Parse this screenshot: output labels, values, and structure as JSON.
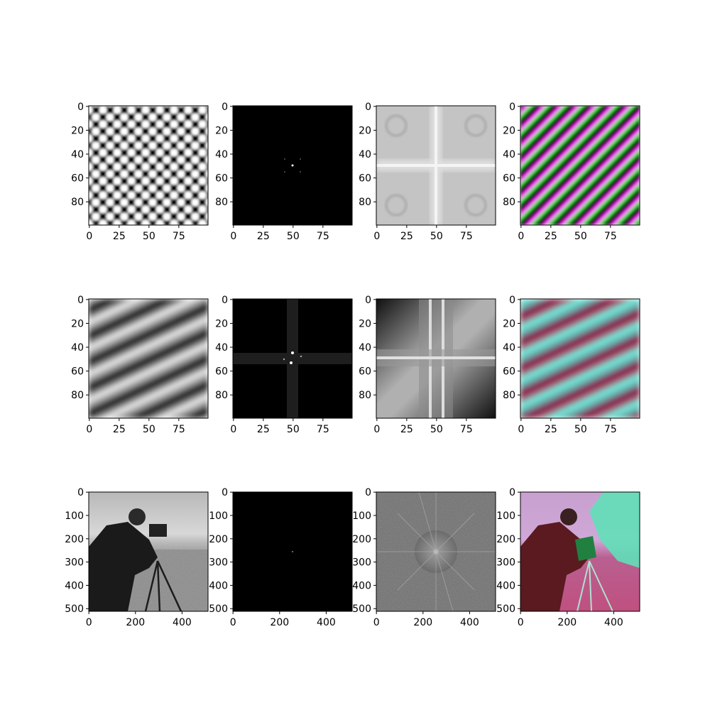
{
  "chart_data": {
    "type": "image_grid",
    "rows": 3,
    "cols": 4,
    "panels": [
      {
        "content": "checkerboard-pattern",
        "xticks": [
          "0",
          "25",
          "50",
          "75"
        ],
        "yticks": [
          "0",
          "20",
          "40",
          "60",
          "80"
        ],
        "xlim": [
          0,
          99
        ],
        "ylim": [
          99,
          0
        ]
      },
      {
        "content": "fft-magnitude-linear",
        "xticks": [
          "0",
          "25",
          "50",
          "75"
        ],
        "yticks": [
          "0",
          "20",
          "40",
          "60",
          "80"
        ],
        "xlim": [
          0,
          99
        ],
        "ylim": [
          99,
          0
        ]
      },
      {
        "content": "fft-magnitude-log",
        "xticks": [
          "0",
          "25",
          "50",
          "75"
        ],
        "yticks": [
          "0",
          "20",
          "40",
          "60",
          "80"
        ],
        "xlim": [
          0,
          99
        ],
        "ylim": [
          99,
          0
        ]
      },
      {
        "content": "phase-colorized",
        "xticks": [
          "0",
          "25",
          "50",
          "75"
        ],
        "yticks": [
          "0",
          "20",
          "40",
          "60",
          "80"
        ],
        "xlim": [
          0,
          99
        ],
        "ylim": [
          99,
          0
        ]
      },
      {
        "content": "skewed-wave-pattern",
        "xticks": [
          "0",
          "25",
          "50",
          "75"
        ],
        "yticks": [
          "0",
          "20",
          "40",
          "60",
          "80"
        ],
        "xlim": [
          0,
          99
        ],
        "ylim": [
          99,
          0
        ]
      },
      {
        "content": "fft-magnitude-linear",
        "xticks": [
          "0",
          "25",
          "50",
          "75"
        ],
        "yticks": [
          "0",
          "20",
          "40",
          "60",
          "80"
        ],
        "xlim": [
          0,
          99
        ],
        "ylim": [
          99,
          0
        ]
      },
      {
        "content": "fft-magnitude-log",
        "xticks": [
          "0",
          "25",
          "50",
          "75"
        ],
        "yticks": [
          "0",
          "20",
          "40",
          "60",
          "80"
        ],
        "xlim": [
          0,
          99
        ],
        "ylim": [
          99,
          0
        ]
      },
      {
        "content": "phase-colorized",
        "xticks": [
          "0",
          "25",
          "50",
          "75"
        ],
        "yticks": [
          "0",
          "20",
          "40",
          "60",
          "80"
        ],
        "xlim": [
          0,
          99
        ],
        "ylim": [
          99,
          0
        ]
      },
      {
        "content": "cameraman-photo",
        "xticks": [
          "0",
          "200",
          "400"
        ],
        "yticks": [
          "0",
          "100",
          "200",
          "300",
          "400",
          "500"
        ],
        "xlim": [
          0,
          511
        ],
        "ylim": [
          511,
          0
        ]
      },
      {
        "content": "fft-magnitude-linear",
        "xticks": [
          "0",
          "200",
          "400"
        ],
        "yticks": [
          "0",
          "100",
          "200",
          "300",
          "400",
          "500"
        ],
        "xlim": [
          0,
          511
        ],
        "ylim": [
          511,
          0
        ]
      },
      {
        "content": "fft-magnitude-log",
        "xticks": [
          "0",
          "200",
          "400"
        ],
        "yticks": [
          "0",
          "100",
          "200",
          "300",
          "400",
          "500"
        ],
        "xlim": [
          0,
          511
        ],
        "ylim": [
          511,
          0
        ]
      },
      {
        "content": "phase-colorized-photo",
        "xticks": [
          "0",
          "200",
          "400"
        ],
        "yticks": [
          "0",
          "100",
          "200",
          "300",
          "400",
          "500"
        ],
        "xlim": [
          0,
          511
        ],
        "ylim": [
          511,
          0
        ]
      }
    ],
    "colors": {
      "checker_dark": "#000000",
      "checker_light": "#ffffff",
      "phase_magenta": "#d000d0",
      "phase_green": "#40e040",
      "phase_cyan": "#60e8d8",
      "phase_maroon": "#901040",
      "fft_background": "#000000",
      "logfft_light": "#c8c8c8",
      "photo_sky": "#c4c4c4",
      "photo_grass": "#8a8a8a"
    }
  }
}
